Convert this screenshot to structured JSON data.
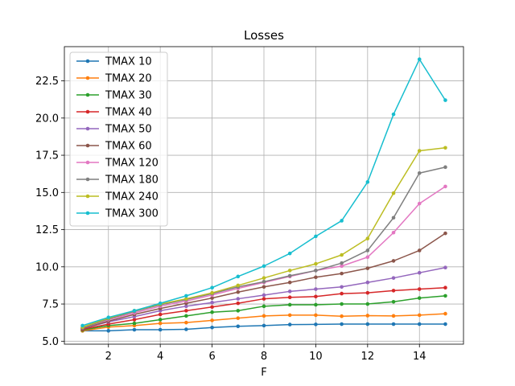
{
  "chart_data": {
    "type": "line",
    "title": "Losses",
    "xlabel": "F",
    "ylabel": "",
    "xlim": [
      0.3,
      15.7
    ],
    "ylim": [
      4.8,
      24.8
    ],
    "xticks": [
      2,
      4,
      6,
      8,
      10,
      12,
      14
    ],
    "yticks": [
      5.0,
      7.5,
      10.0,
      12.5,
      15.0,
      17.5,
      20.0,
      22.5
    ],
    "ytick_labels": [
      "5.0",
      "7.5",
      "10.0",
      "12.5",
      "15.0",
      "17.5",
      "20.0",
      "22.5"
    ],
    "grid": true,
    "legend_position": "upper-left",
    "x": [
      1,
      2,
      3,
      4,
      5,
      6,
      7,
      8,
      9,
      10,
      11,
      12,
      13,
      14,
      15
    ],
    "series": [
      {
        "name": "TMAX 10",
        "color": "#1f77b4",
        "values": [
          5.7,
          5.7,
          5.77,
          5.77,
          5.8,
          5.92,
          6.0,
          6.05,
          6.12,
          6.13,
          6.15,
          6.15,
          6.15,
          6.15,
          6.15
        ]
      },
      {
        "name": "TMAX 20",
        "color": "#ff7f0e",
        "values": [
          5.7,
          5.95,
          6.05,
          6.2,
          6.25,
          6.4,
          6.55,
          6.7,
          6.75,
          6.75,
          6.68,
          6.72,
          6.7,
          6.75,
          6.85
        ]
      },
      {
        "name": "TMAX 30",
        "color": "#2ca02c",
        "values": [
          5.75,
          6.05,
          6.2,
          6.45,
          6.7,
          6.95,
          7.05,
          7.35,
          7.45,
          7.45,
          7.5,
          7.5,
          7.65,
          7.9,
          8.05
        ]
      },
      {
        "name": "TMAX 40",
        "color": "#d62728",
        "values": [
          5.8,
          6.15,
          6.45,
          6.8,
          7.05,
          7.3,
          7.55,
          7.85,
          7.95,
          8.0,
          8.2,
          8.25,
          8.4,
          8.5,
          8.6
        ]
      },
      {
        "name": "TMAX 50",
        "color": "#9467bd",
        "values": [
          5.85,
          6.3,
          6.65,
          7.05,
          7.35,
          7.6,
          7.85,
          8.1,
          8.35,
          8.5,
          8.65,
          8.95,
          9.25,
          9.6,
          9.95
        ]
      },
      {
        "name": "TMAX 60",
        "color": "#8c564b",
        "values": [
          5.85,
          6.35,
          6.8,
          7.2,
          7.55,
          7.9,
          8.3,
          8.65,
          8.95,
          9.3,
          9.55,
          9.9,
          10.4,
          11.1,
          12.25
        ]
      },
      {
        "name": "TMAX 120",
        "color": "#e377c2",
        "values": [
          5.9,
          6.45,
          6.9,
          7.35,
          7.7,
          8.1,
          8.55,
          8.95,
          9.35,
          9.75,
          10.05,
          10.65,
          12.3,
          14.25,
          15.4
        ]
      },
      {
        "name": "TMAX 180",
        "color": "#7f7f7f",
        "values": [
          5.9,
          6.5,
          7.0,
          7.45,
          7.8,
          8.2,
          8.65,
          9.0,
          9.4,
          9.75,
          10.25,
          11.1,
          13.3,
          16.3,
          16.7
        ]
      },
      {
        "name": "TMAX 240",
        "color": "#bcbd22",
        "values": [
          5.95,
          6.55,
          7.05,
          7.5,
          7.85,
          8.25,
          8.75,
          9.25,
          9.75,
          10.2,
          10.8,
          11.9,
          14.95,
          17.8,
          18.0
        ]
      },
      {
        "name": "TMAX 300",
        "color": "#17becf",
        "values": [
          6.05,
          6.6,
          7.05,
          7.55,
          8.05,
          8.6,
          9.35,
          10.05,
          10.9,
          12.05,
          13.1,
          15.7,
          20.25,
          23.95,
          21.2
        ]
      }
    ]
  }
}
